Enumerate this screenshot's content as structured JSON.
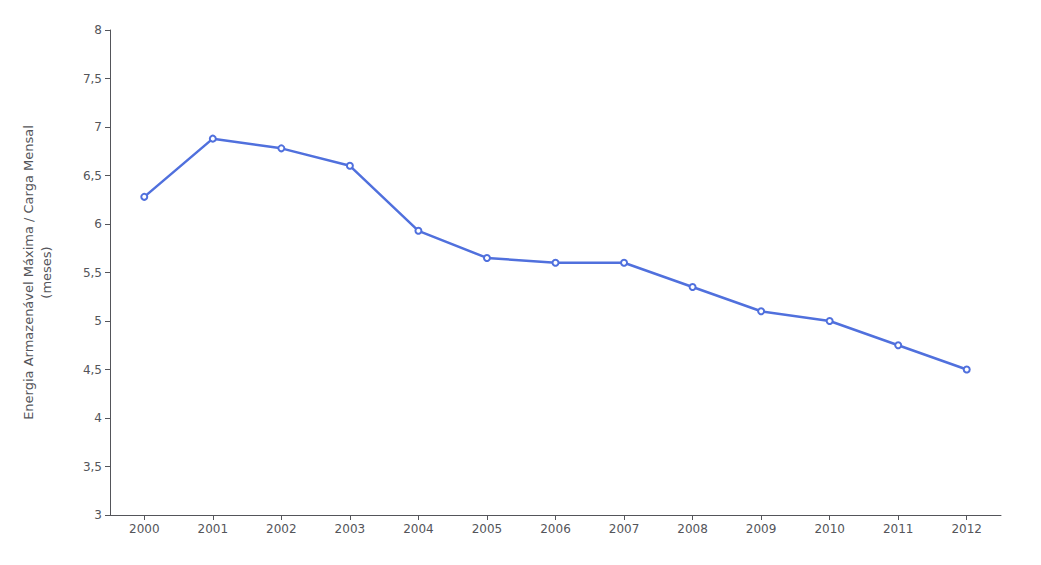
{
  "chart_data": {
    "type": "line",
    "ylabel": "Energia Armazenável Máxima / Carga Mensal\n(meses)",
    "x": [
      2000,
      2001,
      2002,
      2003,
      2004,
      2005,
      2006,
      2007,
      2008,
      2009,
      2010,
      2011,
      2012
    ],
    "values": [
      6.28,
      6.88,
      6.78,
      6.6,
      5.93,
      5.65,
      5.6,
      5.6,
      5.35,
      5.1,
      5.0,
      4.75,
      4.5
    ],
    "xlim": [
      1999.5,
      2012.5
    ],
    "xticks": [
      2000,
      2001,
      2002,
      2003,
      2004,
      2005,
      2006,
      2007,
      2008,
      2009,
      2010,
      2011,
      2012
    ],
    "ylim": [
      3,
      8
    ],
    "yticks": [
      3,
      {
        "value": 3.5,
        "label": "3,5"
      },
      4,
      {
        "value": 4.5,
        "label": "4,5"
      },
      5,
      {
        "value": 5.5,
        "label": "5,5"
      },
      6,
      {
        "value": 6.5,
        "label": "6,5"
      },
      7,
      {
        "value": 7.5,
        "label": "7,5"
      },
      8
    ],
    "grid": false
  }
}
